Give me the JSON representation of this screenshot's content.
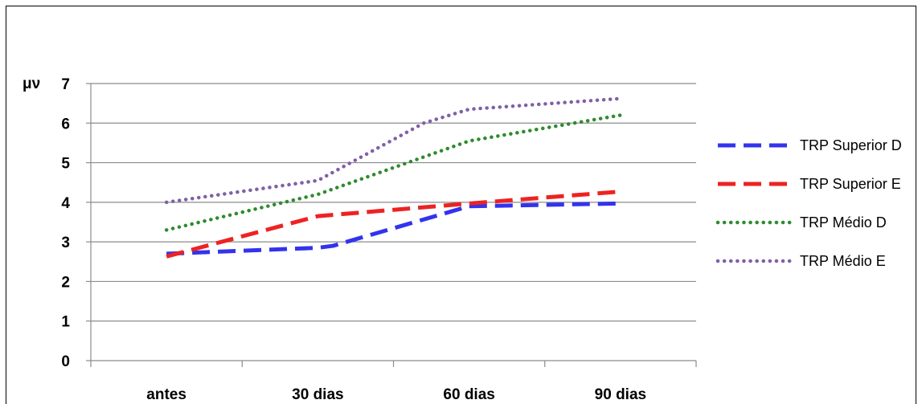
{
  "chart_data": {
    "type": "line",
    "title": "",
    "xlabel": "",
    "ylabel": "μν",
    "categories": [
      "antes",
      "30 dias",
      "60 dias",
      "90 dias"
    ],
    "ylim": [
      0,
      7
    ],
    "yticks": [
      0,
      1,
      2,
      3,
      4,
      5,
      6,
      7
    ],
    "grid": true,
    "legend_position": "right",
    "series": [
      {
        "name": "TRP Superior D",
        "color": "#3333ee",
        "style": "dashed",
        "x": [
          0,
          1,
          1.1,
          2,
          3
        ],
        "values": [
          2.7,
          2.85,
          2.9,
          3.9,
          3.97
        ]
      },
      {
        "name": "TRP Superior E",
        "color": "#ee2222",
        "style": "dashed",
        "x": [
          0,
          1,
          2,
          3
        ],
        "values": [
          2.63,
          3.65,
          3.97,
          4.27
        ]
      },
      {
        "name": "TRP Médio D",
        "color": "#2e8b2e",
        "style": "dotted",
        "x": [
          0,
          1,
          2,
          3
        ],
        "values": [
          3.3,
          4.2,
          5.55,
          6.2
        ]
      },
      {
        "name": "TRP Médio E",
        "color": "#8060a8",
        "style": "dotted",
        "x": [
          0,
          1,
          1.7,
          2,
          3
        ],
        "values": [
          4.0,
          4.55,
          6.0,
          6.35,
          6.62
        ]
      }
    ]
  }
}
